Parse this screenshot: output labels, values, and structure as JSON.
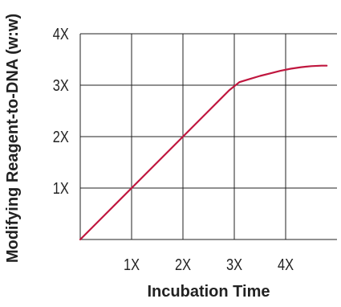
{
  "chart_data": {
    "type": "line",
    "xlabel": "Incubation Time",
    "ylabel": "Modifying Reagent-to-DNA (w:w)",
    "x_ticks": [
      {
        "value": 1,
        "label": "1X"
      },
      {
        "value": 2,
        "label": "2X"
      },
      {
        "value": 3,
        "label": "3X"
      },
      {
        "value": 4,
        "label": "4X"
      }
    ],
    "y_ticks": [
      {
        "value": 1,
        "label": "1X"
      },
      {
        "value": 2,
        "label": "2X"
      },
      {
        "value": 3,
        "label": "3X"
      },
      {
        "value": 4,
        "label": "4X"
      }
    ],
    "xlim": [
      0,
      5
    ],
    "ylim": [
      0,
      4
    ],
    "grid": true,
    "series": [
      {
        "color": "#c0173f",
        "x": [
          0,
          1,
          2,
          2.9,
          3.1,
          3.3,
          3.5,
          3.7,
          3.9,
          4.1,
          4.3,
          4.5,
          4.7,
          4.8
        ],
        "y": [
          0,
          1,
          2,
          2.9,
          3.06,
          3.12,
          3.18,
          3.23,
          3.28,
          3.32,
          3.35,
          3.37,
          3.38,
          3.38
        ]
      }
    ]
  }
}
